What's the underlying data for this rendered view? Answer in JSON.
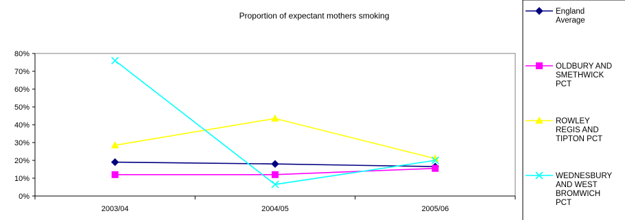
{
  "chart_data": {
    "type": "line",
    "title": "Proportion of expectant mothers smoking",
    "xlabel": "",
    "ylabel": "",
    "categories": [
      "2003/04",
      "2004/05",
      "2005/06"
    ],
    "ylim": [
      0,
      80
    ],
    "yticks": [
      0,
      10,
      20,
      30,
      40,
      50,
      60,
      70,
      80
    ],
    "ytick_format": "percent",
    "grid": false,
    "legend_position": "right",
    "series": [
      {
        "name": "England Average",
        "legend_lines": [
          "England",
          "Average"
        ],
        "values": [
          19,
          18,
          16.5
        ],
        "color": "#000080",
        "marker": "diamond"
      },
      {
        "name": "OLDBURY AND SMETHWICK PCT",
        "legend_lines": [
          "OLDBURY AND",
          "SMETHWICK",
          "PCT"
        ],
        "values": [
          12,
          12,
          15.5
        ],
        "color": "#FF00FF",
        "marker": "square"
      },
      {
        "name": "ROWLEY REGIS AND TIPTON PCT",
        "legend_lines": [
          "ROWLEY",
          "REGIS AND",
          "TIPTON PCT"
        ],
        "values": [
          28.5,
          43.5,
          21
        ],
        "color": "#FFFF00",
        "marker": "triangle"
      },
      {
        "name": "WEDNESBURY AND WEST BROMWICH PCT",
        "legend_lines": [
          "WEDNESBURY",
          "AND WEST",
          "BROMWICH",
          "PCT"
        ],
        "values": [
          76,
          6.5,
          20
        ],
        "color": "#00FFFF",
        "marker": "x"
      }
    ]
  }
}
